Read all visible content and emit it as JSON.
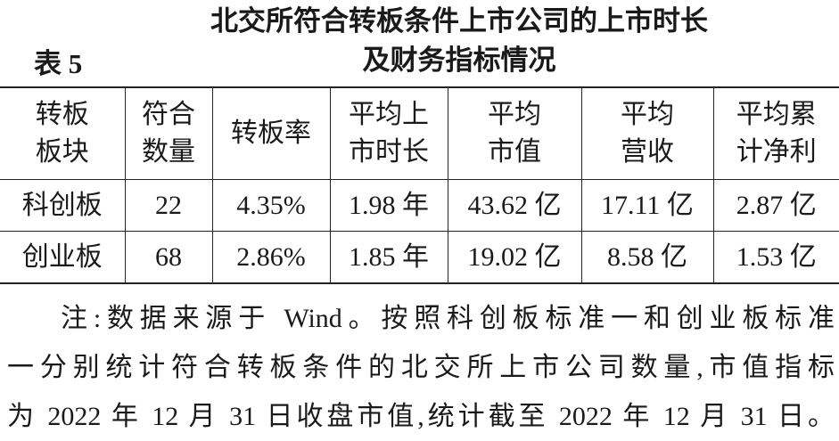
{
  "table_label": "表 5",
  "title": [
    "北交所符合转板条件上市公司的上市时长",
    "及财务指标情况"
  ],
  "table": {
    "header": [
      [
        "转板",
        "板块"
      ],
      [
        "符合",
        "数量"
      ],
      [
        "转板率"
      ],
      [
        "平均上",
        "市时长"
      ],
      [
        "平均",
        "市值"
      ],
      [
        "平均",
        "营收"
      ],
      [
        "平均累",
        "计净利"
      ]
    ],
    "rows": [
      [
        "科创板",
        "22",
        "4.35%",
        "1.98 年",
        "43.62 亿",
        "17.11 亿",
        "2.87 亿"
      ],
      [
        "创业板",
        "68",
        "2.86%",
        "1.85 年",
        "19.02 亿",
        "8.58 亿",
        "1.53 亿"
      ]
    ]
  },
  "note": [
    "注:数据来源于 Wind。按照科创板标准一和创业板标准",
    "一分别统计符合转板条件的北交所上市公司数量,市值指标",
    "为 2022 年 12 月 31 日收盘市值,统计截至 2022 年 12 月 31 日。"
  ]
}
